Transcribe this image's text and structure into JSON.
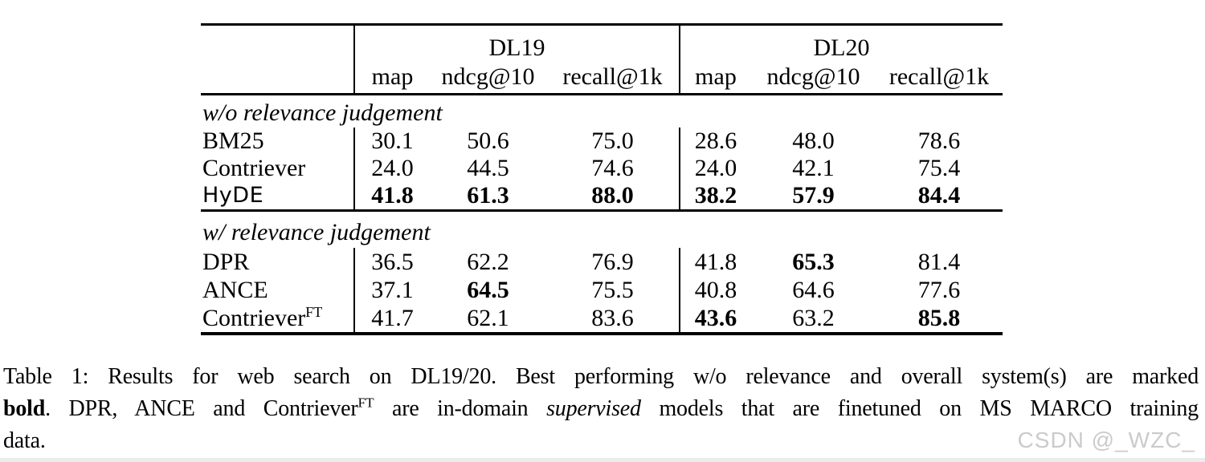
{
  "table": {
    "group_headers": [
      {
        "label": "DL19"
      },
      {
        "label": "DL20"
      }
    ],
    "col_headers": [
      "map",
      "ndcg@10",
      "recall@1k",
      "map",
      "ndcg@10",
      "recall@1k"
    ],
    "sections": [
      {
        "title": "w/o relevance judgement",
        "rows": [
          {
            "model": "BM25",
            "values": [
              {
                "v": "30.1"
              },
              {
                "v": "50.6"
              },
              {
                "v": "75.0"
              },
              {
                "v": "28.6"
              },
              {
                "v": "48.0"
              },
              {
                "v": "78.6"
              }
            ]
          },
          {
            "model": "Contriever",
            "values": [
              {
                "v": "24.0"
              },
              {
                "v": "44.5"
              },
              {
                "v": "74.6"
              },
              {
                "v": "24.0"
              },
              {
                "v": "42.1"
              },
              {
                "v": "75.4"
              }
            ]
          },
          {
            "model": "HyDE",
            "sans": true,
            "values": [
              {
                "v": "41.8",
                "b": true
              },
              {
                "v": "61.3",
                "b": true
              },
              {
                "v": "88.0",
                "b": true
              },
              {
                "v": "38.2",
                "b": true
              },
              {
                "v": "57.9",
                "b": true
              },
              {
                "v": "84.4",
                "b": true
              }
            ]
          }
        ]
      },
      {
        "title": "w/ relevance judgement",
        "rows": [
          {
            "model": "DPR",
            "values": [
              {
                "v": "36.5"
              },
              {
                "v": "62.2"
              },
              {
                "v": "76.9"
              },
              {
                "v": "41.8"
              },
              {
                "v": "65.3",
                "b": true
              },
              {
                "v": "81.4"
              }
            ]
          },
          {
            "model": "ANCE",
            "values": [
              {
                "v": "37.1"
              },
              {
                "v": "64.5",
                "b": true
              },
              {
                "v": "75.5"
              },
              {
                "v": "40.8"
              },
              {
                "v": "64.6"
              },
              {
                "v": "77.6"
              }
            ]
          },
          {
            "model": "Contriever",
            "sup": "FT",
            "values": [
              {
                "v": "41.7"
              },
              {
                "v": "62.1"
              },
              {
                "v": "83.6"
              },
              {
                "v": "43.6",
                "b": true
              },
              {
                "v": "63.2"
              },
              {
                "v": "85.8",
                "b": true
              }
            ]
          }
        ]
      }
    ]
  },
  "caption": {
    "lines": [
      {
        "align": "justify",
        "segments": [
          {
            "t": "Table 1: Results for web search on DL19/20. Best performing w/o relevance and overall system(s) are marked"
          }
        ]
      },
      {
        "align": "justify",
        "segments": [
          {
            "t": "bold",
            "bold": true
          },
          {
            "t": ". DPR, ANCE and Contriever"
          },
          {
            "t": "FT",
            "sup": true
          },
          {
            "t": " are in-domain "
          },
          {
            "t": "supervised",
            "italic": true
          },
          {
            "t": " models that are finetuned on MS MARCO training"
          }
        ]
      },
      {
        "align": "left",
        "segments": [
          {
            "t": "data."
          }
        ]
      }
    ]
  },
  "watermark": {
    "text": "CSDN @_WZC_"
  }
}
